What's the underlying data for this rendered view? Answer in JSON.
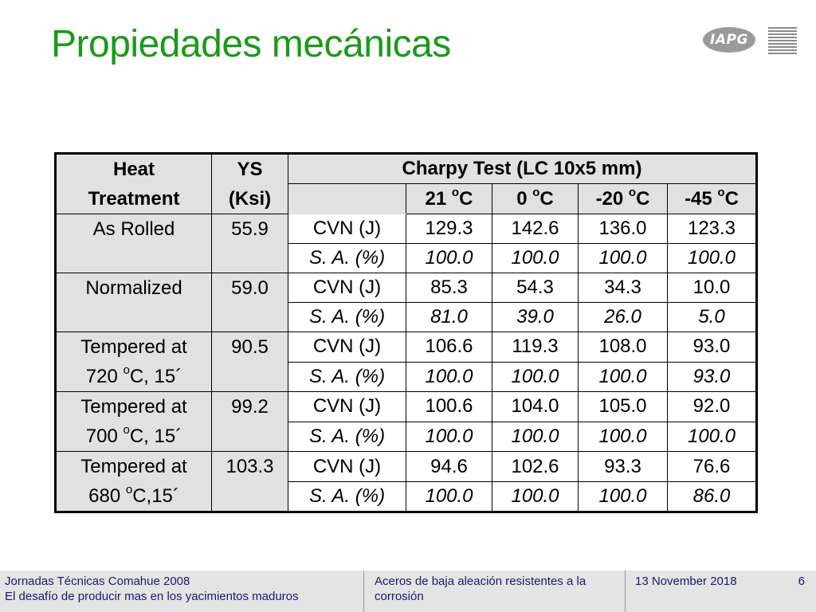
{
  "slide": {
    "title": "Propiedades mecánicas",
    "logo_text": "IAPG"
  },
  "table": {
    "header": {
      "heat_treatment_line1": "Heat",
      "heat_treatment_line2": "Treatment",
      "ys_line1": "YS",
      "ys_line2": "(Ksi)",
      "charpy": "Charpy Test (LC 10x5 mm)",
      "temps": [
        {
          "value": "21 ",
          "unit": "C"
        },
        {
          "value": "0 ",
          "unit": "C"
        },
        {
          "value": "-20 ",
          "unit": "C"
        },
        {
          "value": "-45 ",
          "unit": "C"
        }
      ],
      "degree": "o"
    },
    "rows": [
      {
        "treatment_line1": "As Rolled",
        "treatment_line2": "",
        "deg1": "",
        "treatment_line2_rest": "",
        "ys": "55.9",
        "cvn_label": "CVN (J)",
        "cvn": [
          "129.3",
          "142.6",
          "136.0",
          "123.3"
        ],
        "sa_label": "S. A. (%)",
        "sa": [
          "100.0",
          "100.0",
          "100.0",
          "100.0"
        ]
      },
      {
        "treatment_line1": "Normalized",
        "treatment_line2": "",
        "deg1": "",
        "treatment_line2_rest": "",
        "ys": "59.0",
        "cvn_label": "CVN (J)",
        "cvn": [
          "85.3",
          "54.3",
          "34.3",
          "10.0"
        ],
        "sa_label": "S. A. (%)",
        "sa": [
          "81.0",
          "39.0",
          "26.0",
          "5.0"
        ]
      },
      {
        "treatment_line1": "Tempered at",
        "treatment_line2": "720 ",
        "deg1": "o",
        "treatment_line2_rest": "C, 15´",
        "ys": "90.5",
        "cvn_label": "CVN (J)",
        "cvn": [
          "106.6",
          "119.3",
          "108.0",
          "93.0"
        ],
        "sa_label": "S. A. (%)",
        "sa": [
          "100.0",
          "100.0",
          "100.0",
          "93.0"
        ]
      },
      {
        "treatment_line1": "Tempered at",
        "treatment_line2": "700 ",
        "deg1": "o",
        "treatment_line2_rest": "C, 15´",
        "ys": "99.2",
        "cvn_label": "CVN (J)",
        "cvn": [
          "100.6",
          "104.0",
          "105.0",
          "92.0"
        ],
        "sa_label": "S. A. (%)",
        "sa": [
          "100.0",
          "100.0",
          "100.0",
          "100.0"
        ]
      },
      {
        "treatment_line1": "Tempered at",
        "treatment_line2": "680 ",
        "deg1": "o",
        "treatment_line2_rest": "C,15´",
        "ys": "103.3",
        "cvn_label": "CVN (J)",
        "cvn": [
          "94.6",
          "102.6",
          "93.3",
          "76.6"
        ],
        "sa_label": "S. A. (%)",
        "sa": [
          "100.0",
          "100.0",
          "100.0",
          "86.0"
        ]
      }
    ]
  },
  "footer": {
    "left_line1": "Jornadas Técnicas Comahue 2008",
    "left_line2": "El desafío de producir mas en los yacimientos maduros",
    "center_line1": "Aceros de baja aleación resistentes a la",
    "center_line2": "corrosión",
    "date": "13 November 2018",
    "page": "6"
  },
  "colors": {
    "title": "#1a9a1a",
    "header_bg": "#e1e1e1",
    "footer_bg": "#e4e4e4",
    "footer_text": "#1a1a6a"
  }
}
